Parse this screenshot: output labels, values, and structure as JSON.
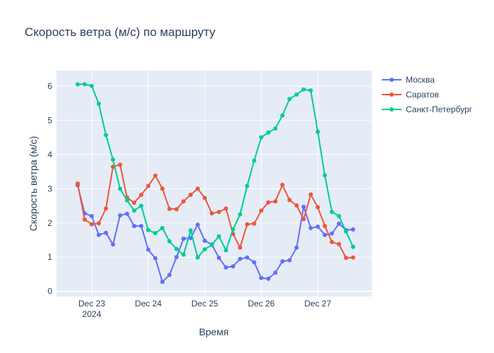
{
  "chart_data": {
    "type": "line",
    "title": "Скорость ветра (м/с) по маршруту",
    "xlabel": "Время",
    "ylabel": "Скорость ветра (м/с)",
    "ylim": [
      -0.15,
      6.45
    ],
    "xlim": [
      -12,
      122
    ],
    "x_ticks": [
      {
        "pos": 3,
        "label": "Dec 23",
        "sub": "2024"
      },
      {
        "pos": 27,
        "label": "Dec 24",
        "sub": ""
      },
      {
        "pos": 51,
        "label": "Dec 25",
        "sub": ""
      },
      {
        "pos": 75,
        "label": "Dec 26",
        "sub": ""
      },
      {
        "pos": 99,
        "label": "Dec 27",
        "sub": ""
      }
    ],
    "y_ticks": [
      0,
      1,
      2,
      3,
      4,
      5,
      6
    ],
    "grid": true,
    "legend_position": "top-right",
    "series": [
      {
        "name": "Москва",
        "color": "#636efa",
        "x": [
          -3,
          0,
          3,
          6,
          9,
          12,
          15,
          18,
          21,
          24,
          27,
          30,
          33,
          36,
          39,
          42,
          45,
          48,
          51,
          54,
          57,
          60,
          63,
          66,
          69,
          72,
          75,
          78,
          81,
          84,
          87,
          90,
          93,
          96,
          99,
          102,
          105,
          108,
          111,
          114,
          117
        ],
        "y": [
          3.1,
          2.28,
          2.2,
          1.65,
          1.71,
          1.37,
          2.22,
          2.27,
          1.91,
          1.91,
          1.22,
          0.97,
          0.28,
          0.48,
          1.0,
          1.54,
          1.56,
          1.95,
          1.48,
          1.37,
          0.98,
          0.7,
          0.73,
          0.95,
          0.99,
          0.85,
          0.39,
          0.37,
          0.55,
          0.88,
          0.91,
          1.28,
          2.47,
          1.85,
          1.89,
          1.65,
          1.69,
          1.98,
          1.79,
          1.81,
          null
        ]
      },
      {
        "name": "Саратов",
        "color": "#ef553b",
        "x": [
          -3,
          0,
          3,
          6,
          9,
          12,
          15,
          18,
          21,
          24,
          27,
          30,
          33,
          36,
          39,
          42,
          45,
          48,
          51,
          54,
          57,
          60,
          63,
          66,
          69,
          72,
          75,
          78,
          81,
          84,
          87,
          90,
          93,
          96,
          99,
          102,
          105,
          108,
          111,
          114
        ],
        "y": [
          3.15,
          2.1,
          1.96,
          1.99,
          2.42,
          3.64,
          3.7,
          2.74,
          2.59,
          2.82,
          3.08,
          3.38,
          3.0,
          2.41,
          2.4,
          2.63,
          2.82,
          3.0,
          2.73,
          2.28,
          2.32,
          2.42,
          1.68,
          1.28,
          1.96,
          1.98,
          2.36,
          2.6,
          2.63,
          3.11,
          2.67,
          2.51,
          2.11,
          2.83,
          2.46,
          1.91,
          1.44,
          1.38,
          0.98,
          0.99
        ]
      },
      {
        "name": "Санкт-Петербург",
        "color": "#00cc96",
        "x": [
          -3,
          0,
          3,
          6,
          9,
          12,
          15,
          18,
          21,
          24,
          27,
          30,
          33,
          36,
          39,
          42,
          45,
          48,
          51,
          54,
          57,
          60,
          63,
          66,
          69,
          72,
          75,
          78,
          81,
          84,
          87,
          90,
          93,
          96,
          99,
          102,
          105,
          108,
          111,
          114
        ],
        "y": [
          6.05,
          6.05,
          6.0,
          5.48,
          4.57,
          3.85,
          3.0,
          2.66,
          2.36,
          2.5,
          1.79,
          1.7,
          1.85,
          1.46,
          1.24,
          1.07,
          1.78,
          0.99,
          1.23,
          1.36,
          1.61,
          1.2,
          1.81,
          2.25,
          3.08,
          3.82,
          4.5,
          4.64,
          4.76,
          5.14,
          5.62,
          5.75,
          5.9,
          5.87,
          4.66,
          3.39,
          2.32,
          2.2,
          1.75,
          1.3
        ]
      }
    ]
  }
}
